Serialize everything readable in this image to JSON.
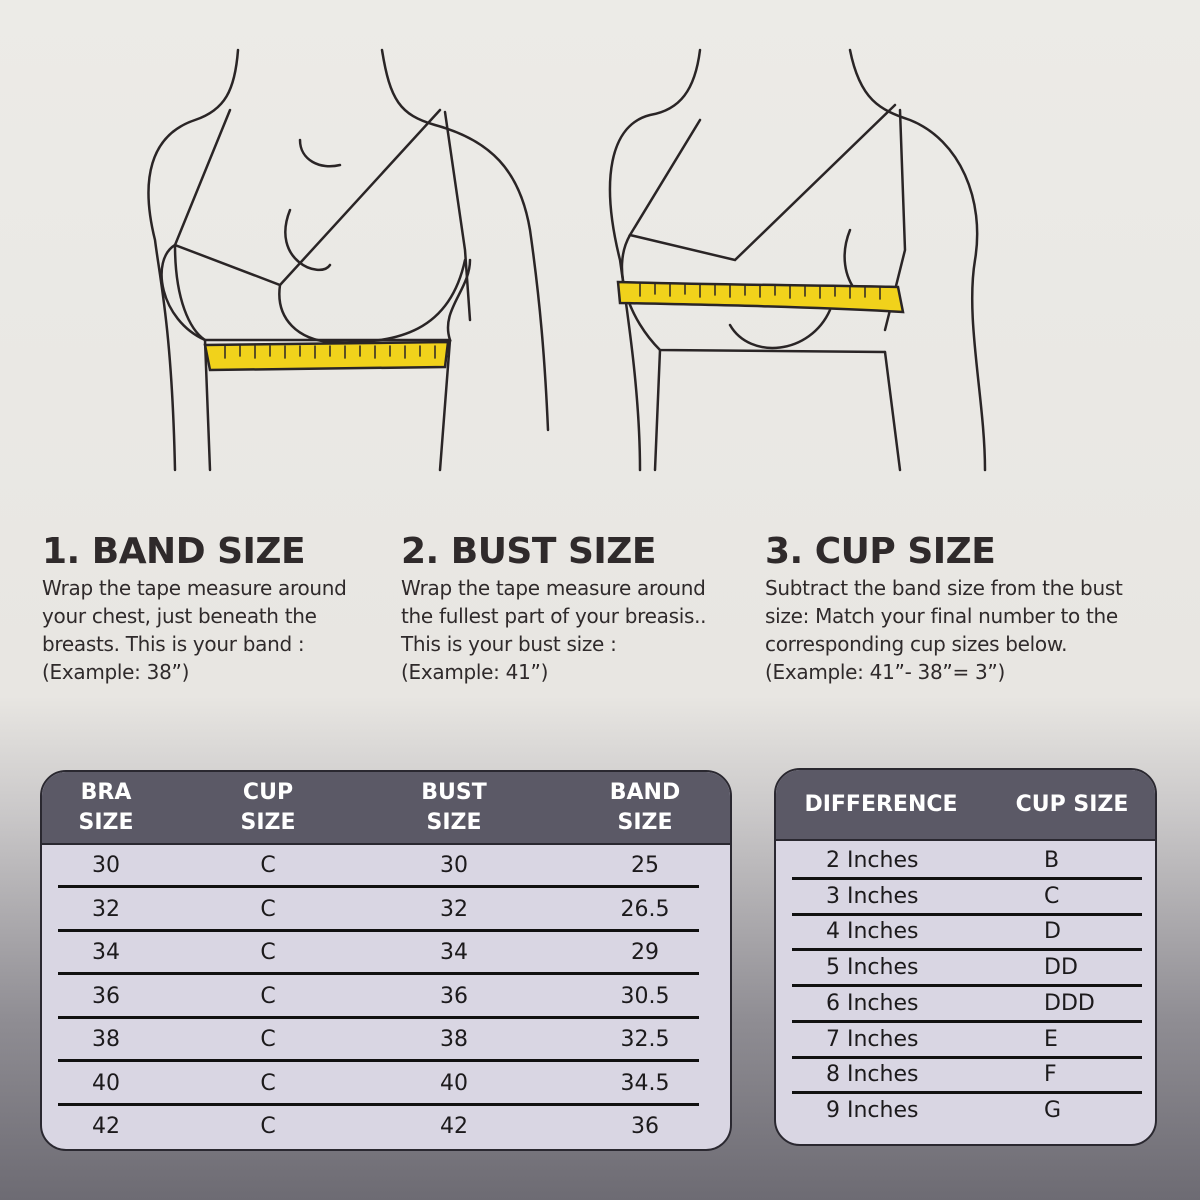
{
  "colors": {
    "tape": "#f1d21b",
    "header": "#5b5966",
    "table_body": "#d9d6e3"
  },
  "steps": [
    {
      "title": "1. BAND SIZE",
      "lines": [
        "Wrap the tape measure around",
        "your chest, just beneath the",
        "breasts. This is your band :",
        "(Example: 38”)"
      ]
    },
    {
      "title": "2. BUST SIZE",
      "lines": [
        "Wrap the tape measure around",
        "the fullest part of your breasis..",
        "This is your bust size :",
        "(Example: 41”)"
      ]
    },
    {
      "title": "3. CUP SIZE",
      "lines": [
        "Subtract the band size from the bust",
        "size: Match your final number to the",
        "corresponding cup sizes below.",
        "(Example: 41”- 38”= 3”)"
      ]
    }
  ],
  "size_table": {
    "headers": [
      [
        "BRA",
        "SIZE"
      ],
      [
        "CUP",
        "SIZE"
      ],
      [
        "BUST",
        "SIZE"
      ],
      [
        "BAND",
        "SIZE"
      ]
    ],
    "rows": [
      [
        "30",
        "C",
        "30",
        "25"
      ],
      [
        "32",
        "C",
        "32",
        "26.5"
      ],
      [
        "34",
        "C",
        "34",
        "29"
      ],
      [
        "36",
        "C",
        "36",
        "30.5"
      ],
      [
        "38",
        "C",
        "38",
        "32.5"
      ],
      [
        "40",
        "C",
        "40",
        "34.5"
      ],
      [
        "42",
        "C",
        "42",
        "36"
      ]
    ]
  },
  "cup_table": {
    "headers": [
      "DIFFERENCE",
      "CUP SIZE"
    ],
    "rows": [
      [
        "2 Inches",
        "B"
      ],
      [
        "3 Inches",
        "C"
      ],
      [
        "4 Inches",
        "D"
      ],
      [
        "5 Inches",
        "DD"
      ],
      [
        "6 Inches",
        "DDD"
      ],
      [
        "7 Inches",
        "E"
      ],
      [
        "8 Inches",
        "F"
      ],
      [
        "9 Inches",
        "G"
      ]
    ]
  }
}
